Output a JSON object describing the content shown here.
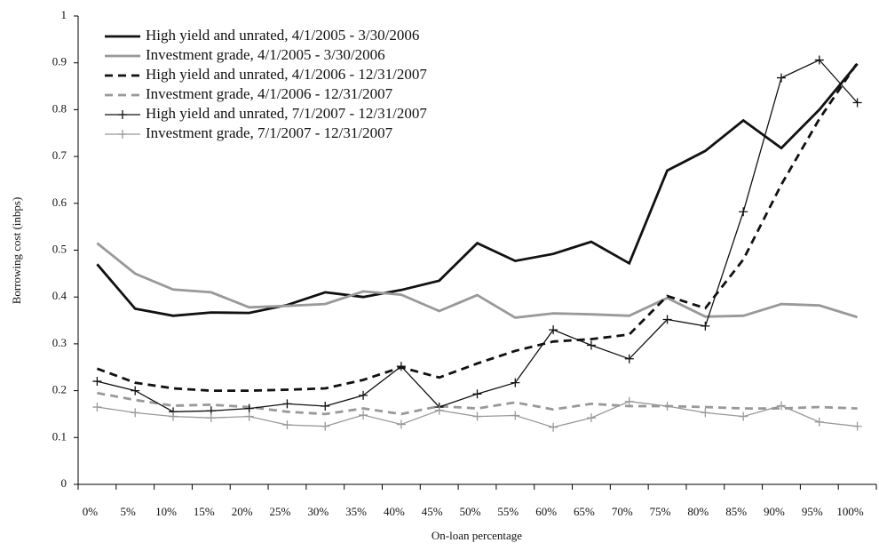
{
  "chart_data": {
    "type": "line",
    "x_label": "On-loan percentage",
    "y_label": "Borrowing cost (inbps)",
    "categories": [
      "0%",
      "5%",
      "10%",
      "15%",
      "20%",
      "25%",
      "30%",
      "35%",
      "40%",
      "45%",
      "50%",
      "55%",
      "60%",
      "65%",
      "70%",
      "75%",
      "80%",
      "85%",
      "90%",
      "95%",
      "100%"
    ],
    "ylim": [
      0,
      1
    ],
    "yticks": [
      0,
      0.1,
      0.2,
      0.3,
      0.4,
      0.5,
      0.6,
      0.7,
      0.8,
      0.9,
      1
    ],
    "grid": false,
    "legend": "upper left",
    "series": [
      {
        "name": "High yield and unrated, 4/1/2005 - 3/30/2006",
        "color": "#111111",
        "line_style": "solid",
        "marker": "none",
        "values": [
          0.47,
          0.375,
          0.36,
          0.367,
          0.366,
          0.383,
          0.41,
          0.4,
          0.415,
          0.435,
          0.515,
          0.477,
          0.492,
          0.518,
          0.472,
          0.67,
          0.712,
          0.777,
          0.718,
          0.8,
          0.898
        ]
      },
      {
        "name": "Investment grade, 4/1/2005 - 3/30/2006",
        "color": "#999999",
        "line_style": "solid",
        "marker": "none",
        "values": [
          0.515,
          0.45,
          0.416,
          0.41,
          0.378,
          0.381,
          0.385,
          0.412,
          0.405,
          0.37,
          0.404,
          0.356,
          0.365,
          0.363,
          0.36,
          0.398,
          0.358,
          0.36,
          0.385,
          0.382,
          0.357
        ]
      },
      {
        "name": "High yield and unrated, 4/1/2006 - 12/31/2007",
        "color": "#111111",
        "line_style": "dashed",
        "marker": "none",
        "values": [
          0.247,
          0.217,
          0.205,
          0.2,
          0.2,
          0.202,
          0.205,
          0.223,
          0.25,
          0.228,
          0.258,
          0.285,
          0.305,
          0.31,
          0.32,
          0.402,
          0.376,
          0.48,
          0.64,
          0.78,
          0.9
        ]
      },
      {
        "name": "Investment grade, 4/1/2006 - 12/31/2007",
        "color": "#999999",
        "line_style": "dashed",
        "marker": "none",
        "values": [
          0.195,
          0.18,
          0.168,
          0.17,
          0.165,
          0.155,
          0.15,
          0.162,
          0.15,
          0.167,
          0.162,
          0.175,
          0.16,
          0.172,
          0.167,
          0.167,
          0.165,
          0.162,
          0.162,
          0.165,
          0.162
        ]
      },
      {
        "name": "High yield and unrated, 7/1/2007 - 12/31/2007",
        "color": "#111111",
        "line_style": "solid",
        "marker": "plus",
        "values": [
          0.22,
          0.2,
          0.155,
          0.157,
          0.162,
          0.172,
          0.167,
          0.19,
          0.252,
          0.165,
          0.193,
          0.217,
          0.33,
          0.297,
          0.268,
          0.352,
          0.338,
          0.582,
          0.868,
          0.906,
          0.815
        ]
      },
      {
        "name": "Investment grade, 7/1/2007 - 12/31/2007",
        "color": "#999999",
        "line_style": "solid",
        "marker": "plus",
        "values": [
          0.165,
          0.153,
          0.145,
          0.142,
          0.145,
          0.127,
          0.124,
          0.148,
          0.128,
          0.158,
          0.145,
          0.147,
          0.122,
          0.142,
          0.177,
          0.167,
          0.153,
          0.145,
          0.168,
          0.133,
          0.124
        ]
      }
    ]
  }
}
